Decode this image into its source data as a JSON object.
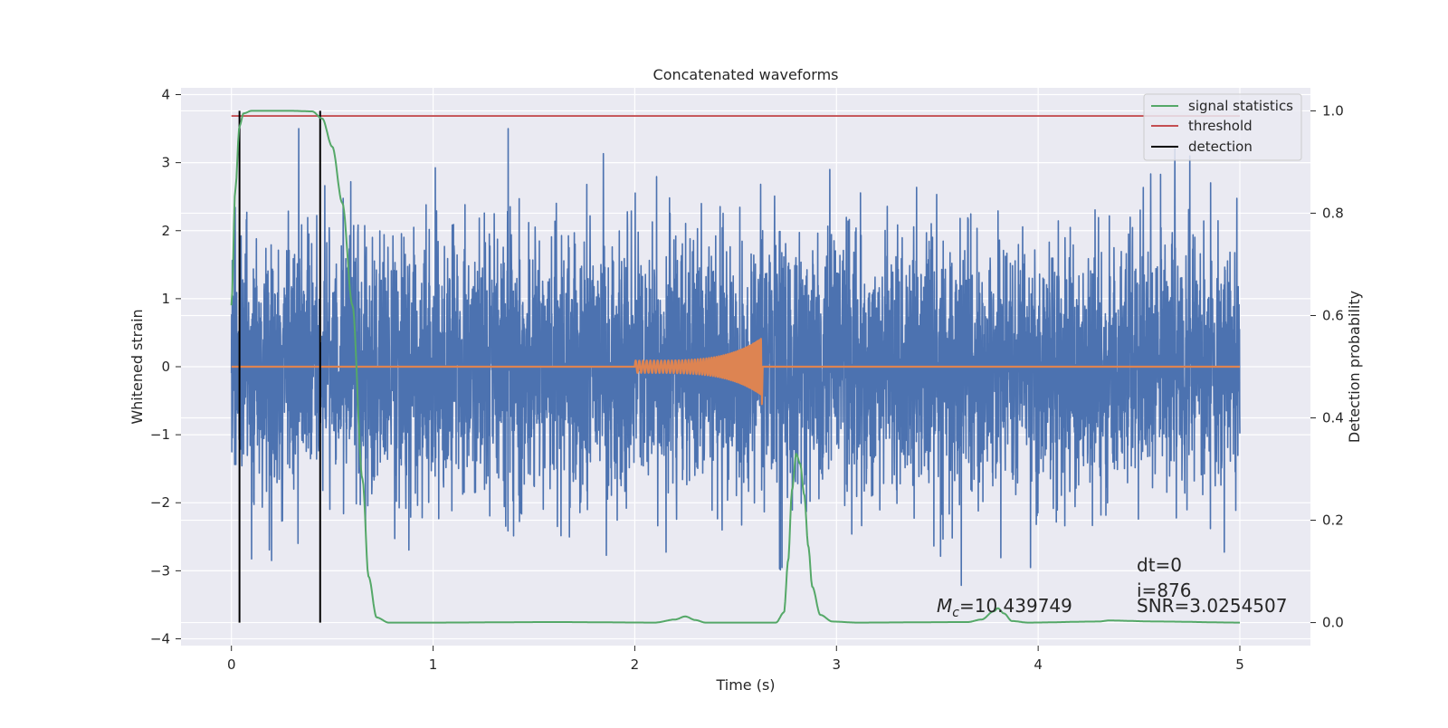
{
  "chart_data": {
    "type": "line",
    "title": "Concatenated waveforms",
    "xlabel": "Time (s)",
    "ylabel_left": "Whitened strain",
    "ylabel_right": "Detection probability",
    "xlim": [
      -0.25,
      5.35
    ],
    "ylim_left": [
      -4.1,
      4.1
    ],
    "ylim_right": [
      -0.045,
      1.045
    ],
    "x_ticks": [
      "0",
      "1",
      "2",
      "3",
      "4",
      "5"
    ],
    "y_ticks_left": [
      "4",
      "3",
      "2",
      "1",
      "0",
      "−1",
      "−2",
      "−3",
      "−4"
    ],
    "y_ticks_right": [
      "1.0",
      "0.8",
      "0.6",
      "0.4",
      "0.2",
      "0.0"
    ],
    "grid": true,
    "legend_position": "top-right",
    "legend": [
      "signal statistics",
      "threshold",
      "detection"
    ],
    "colors": {
      "strain": "#4c72b0",
      "template": "#dd8452",
      "signal_statistics": "#55a868",
      "threshold": "#c44e52",
      "detection": "#000000",
      "background": "#eaeaf2",
      "grid": "#ffffff"
    },
    "series": [
      {
        "name": "whitened strain (noise)",
        "axis": "left",
        "x_range": [
          0,
          5
        ],
        "amplitude_envelope": [
          -3.7,
          3.5
        ],
        "typical_abs": 1.0
      },
      {
        "name": "injected waveform",
        "axis": "left",
        "x_range": [
          2.0,
          2.63
        ],
        "peak_amplitude": 0.42,
        "chirp": true
      },
      {
        "name": "signal statistics",
        "axis": "right",
        "points": [
          [
            0.0,
            0.62
          ],
          [
            0.02,
            0.85
          ],
          [
            0.04,
            0.97
          ],
          [
            0.06,
            0.995
          ],
          [
            0.1,
            1.0
          ],
          [
            0.3,
            1.0
          ],
          [
            0.4,
            0.999
          ],
          [
            0.45,
            0.985
          ],
          [
            0.5,
            0.93
          ],
          [
            0.55,
            0.82
          ],
          [
            0.6,
            0.62
          ],
          [
            0.65,
            0.28
          ],
          [
            0.68,
            0.09
          ],
          [
            0.72,
            0.01
          ],
          [
            0.78,
            0.0
          ],
          [
            1.0,
            0.0
          ],
          [
            1.6,
            0.001
          ],
          [
            2.1,
            0.0
          ],
          [
            2.2,
            0.006
          ],
          [
            2.25,
            0.012
          ],
          [
            2.3,
            0.005
          ],
          [
            2.35,
            0.0
          ],
          [
            2.7,
            0.0
          ],
          [
            2.74,
            0.02
          ],
          [
            2.76,
            0.12
          ],
          [
            2.78,
            0.26
          ],
          [
            2.8,
            0.33
          ],
          [
            2.82,
            0.31
          ],
          [
            2.84,
            0.25
          ],
          [
            2.86,
            0.15
          ],
          [
            2.88,
            0.07
          ],
          [
            2.92,
            0.015
          ],
          [
            2.98,
            0.002
          ],
          [
            3.1,
            0.0
          ],
          [
            3.65,
            0.001
          ],
          [
            3.72,
            0.006
          ],
          [
            3.78,
            0.022
          ],
          [
            3.8,
            0.028
          ],
          [
            3.83,
            0.018
          ],
          [
            3.87,
            0.003
          ],
          [
            3.95,
            0.0
          ],
          [
            4.3,
            0.002
          ],
          [
            4.35,
            0.004
          ],
          [
            4.6,
            0.002
          ],
          [
            5.0,
            0.0
          ]
        ]
      },
      {
        "name": "threshold",
        "axis": "right",
        "x_range": [
          0,
          5
        ],
        "value": 0.99
      },
      {
        "name": "detection",
        "axis": "right",
        "x": [
          0.04,
          0.44
        ],
        "y_range": [
          0.0,
          1.0
        ]
      }
    ],
    "annotations": [
      {
        "text": "dt=0",
        "x": 4.5,
        "y": 0.1
      },
      {
        "text": "i=876",
        "x": 4.5,
        "y": 0.055
      },
      {
        "text": "SNR=3.0254507",
        "x": 4.5,
        "y": 0.025
      },
      {
        "text_main": "M",
        "text_sub": "c",
        "text_rest": "=10.439749",
        "x": 3.5,
        "y": 0.025
      }
    ]
  }
}
